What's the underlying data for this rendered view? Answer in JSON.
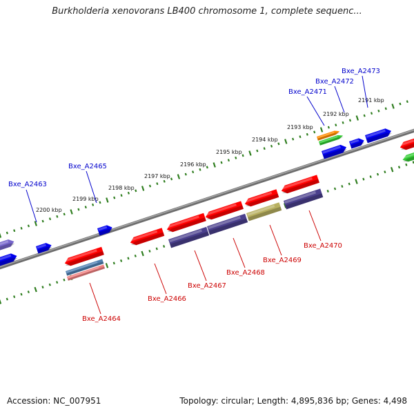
{
  "title": "Burkholderia xenovorans LB400 chromosome 1, complete sequenc...",
  "footer": {
    "accession": "Accession: NC_007951",
    "summary": "Topology: circular; Length: 4,895,836 bp; Genes: 4,498"
  },
  "colors": {
    "backbone": "#808080",
    "tick": "#2e7d1e",
    "forward_label": "#0000cc",
    "reverse_label": "#cc0000",
    "gene_red": "#ff0000",
    "gene_blue": "#0000ee",
    "gene_navy": "#4a3f8c",
    "gene_purple": "#7766cc",
    "gene_olive": "#b8b060",
    "gene_steel": "#4f7fb0",
    "gene_pink": "#f08080",
    "gene_orange": "#ff8c00",
    "gene_green": "#33cc33"
  },
  "ticks": [
    {
      "label": "2191 kbp",
      "pos": 2191
    },
    {
      "label": "2192 kbp",
      "pos": 2192
    },
    {
      "label": "2193 kbp",
      "pos": 2193
    },
    {
      "label": "2194 kbp",
      "pos": 2194
    },
    {
      "label": "2195 kbp",
      "pos": 2195
    },
    {
      "label": "2196 kbp",
      "pos": 2196
    },
    {
      "label": "2197 kbp",
      "pos": 2197
    },
    {
      "label": "2198 kbp",
      "pos": 2198
    },
    {
      "label": "2199 kbp",
      "pos": 2199
    },
    {
      "label": "2200 kbp",
      "pos": 2200
    }
  ],
  "labels": {
    "forward": [
      "Bxe_A2463",
      "Bxe_A2465",
      "Bxe_A2471",
      "Bxe_A2472",
      "Bxe_A2473"
    ],
    "reverse": [
      "Bxe_A2464",
      "Bxe_A2466",
      "Bxe_A2467",
      "Bxe_A2468",
      "Bxe_A2469",
      "Bxe_A2470"
    ]
  }
}
